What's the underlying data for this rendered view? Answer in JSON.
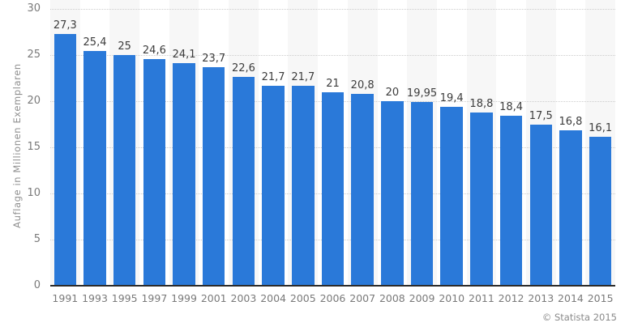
{
  "chart_data": {
    "type": "bar",
    "categories": [
      "1991",
      "1993",
      "1995",
      "1997",
      "1999",
      "2001",
      "2003",
      "2004",
      "2005",
      "2006",
      "2007",
      "2008",
      "2009",
      "2010",
      "2011",
      "2012",
      "2013",
      "2014",
      "2015"
    ],
    "values": [
      27.3,
      25.4,
      25,
      24.6,
      24.1,
      23.7,
      22.6,
      21.7,
      21.7,
      21,
      20.8,
      20,
      19.95,
      19.4,
      18.8,
      18.4,
      17.5,
      16.8,
      16.1
    ],
    "value_labels": [
      "27,3",
      "25,4",
      "25",
      "24,6",
      "24,1",
      "23,7",
      "22,6",
      "21,7",
      "21,7",
      "21",
      "20,8",
      "20",
      "19,95",
      "19,4",
      "18,8",
      "18,4",
      "17,5",
      "16,8",
      "16,1"
    ],
    "title": "",
    "xlabel": "",
    "ylabel": "Auflage in Millionen Exemplaren",
    "ylim": [
      0,
      30
    ],
    "yticks": [
      0,
      5,
      10,
      15,
      20,
      25,
      30
    ],
    "grid": "horizontal-dotted",
    "legend": "none",
    "colors": {
      "bar": "#2a79d9",
      "stripe": "#f7f7f7",
      "gridline": "#cdcdcd",
      "axis_line": "#2b2b2b",
      "tick_label": "#7a7a7a",
      "value_label": "#3c3c3c",
      "y_title": "#8f8f8f"
    }
  },
  "footer": {
    "copyright": "© Statista 2015"
  }
}
